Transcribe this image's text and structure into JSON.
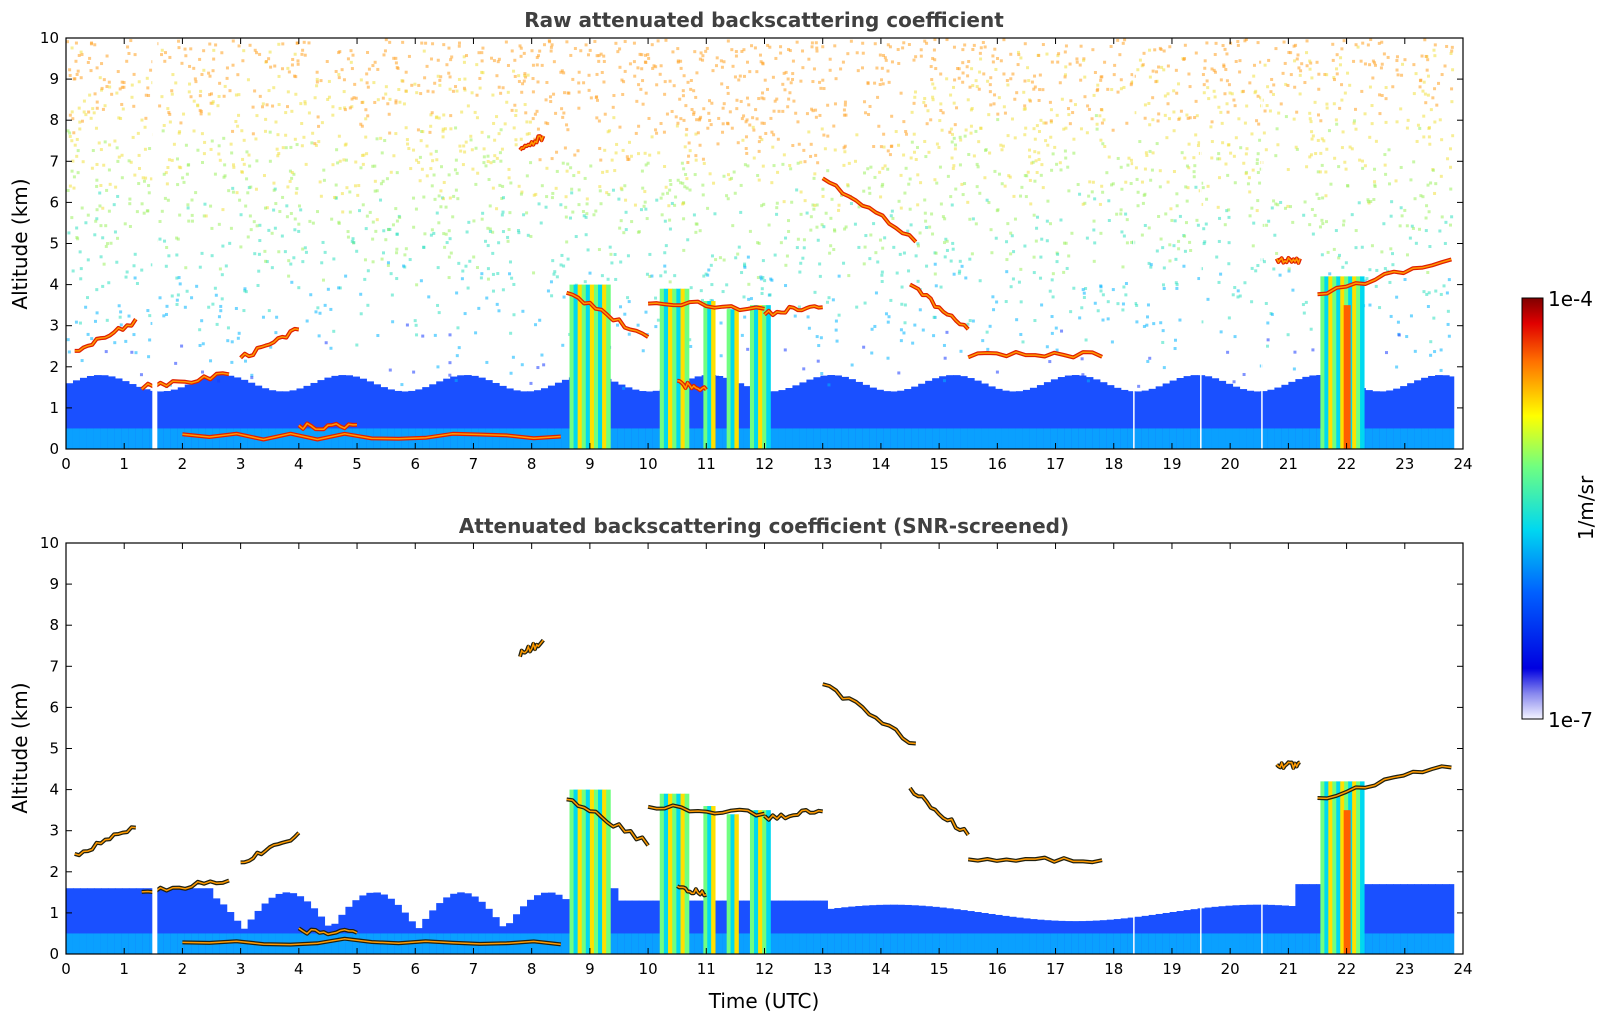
{
  "chart_data": [
    {
      "type": "heatmap",
      "title": "Raw attenuated backscattering coefficient",
      "xlabel": "",
      "ylabel": "Altitude (km)",
      "xlim": [
        0,
        24
      ],
      "ylim": [
        0,
        10
      ],
      "xticks": [
        "0",
        "1",
        "2",
        "3",
        "4",
        "5",
        "6",
        "7",
        "8",
        "9",
        "10",
        "11",
        "12",
        "13",
        "14",
        "15",
        "16",
        "17",
        "18",
        "19",
        "20",
        "21",
        "22",
        "23",
        "24"
      ],
      "yticks": [
        "0",
        "1",
        "2",
        "3",
        "4",
        "5",
        "6",
        "7",
        "8",
        "9",
        "10"
      ],
      "screened": false
    },
    {
      "type": "heatmap",
      "title": "Attenuated backscattering coefficient (SNR-screened)",
      "xlabel": "Time (UTC)",
      "ylabel": "Altitude (km)",
      "xlim": [
        0,
        24
      ],
      "ylim": [
        0,
        10
      ],
      "xticks": [
        "0",
        "1",
        "2",
        "3",
        "4",
        "5",
        "6",
        "7",
        "8",
        "9",
        "10",
        "11",
        "12",
        "13",
        "14",
        "15",
        "16",
        "17",
        "18",
        "19",
        "20",
        "21",
        "22",
        "23",
        "24"
      ],
      "yticks": [
        "0",
        "1",
        "2",
        "3",
        "4",
        "5",
        "6",
        "7",
        "8",
        "9",
        "10"
      ],
      "screened": true
    }
  ],
  "colorbar": {
    "label": "1/m/sr",
    "max_label": "1e-4",
    "min_label": "1e-7",
    "colormap": "jet",
    "scale": "log"
  },
  "layers": {
    "cloud_segments": [
      {
        "x0": 0.15,
        "x1": 1.2,
        "y0": 2.4,
        "y1": 3.1
      },
      {
        "x0": 1.3,
        "x1": 2.8,
        "y0": 1.5,
        "y1": 1.8
      },
      {
        "x0": 3.0,
        "x1": 4.0,
        "y0": 2.2,
        "y1": 2.9
      },
      {
        "x0": 4.0,
        "x1": 5.0,
        "y0": 0.55,
        "y1": 0.55
      },
      {
        "x0": 2.0,
        "x1": 8.5,
        "y0": 0.3,
        "y1": 0.3
      },
      {
        "x0": 7.8,
        "x1": 8.2,
        "y0": 7.3,
        "y1": 7.6
      },
      {
        "x0": 8.6,
        "x1": 10.0,
        "y0": 3.8,
        "y1": 2.7
      },
      {
        "x0": 10.0,
        "x1": 12.0,
        "y0": 3.6,
        "y1": 3.4
      },
      {
        "x0": 10.5,
        "x1": 11.0,
        "y0": 1.6,
        "y1": 1.45
      },
      {
        "x0": 12.0,
        "x1": 13.0,
        "y0": 3.3,
        "y1": 3.5
      },
      {
        "x0": 13.0,
        "x1": 14.6,
        "y0": 6.6,
        "y1": 5.1
      },
      {
        "x0": 14.5,
        "x1": 15.5,
        "y0": 4.0,
        "y1": 2.9
      },
      {
        "x0": 15.5,
        "x1": 17.8,
        "y0": 2.3,
        "y1": 2.3
      },
      {
        "x0": 20.8,
        "x1": 21.2,
        "y0": 4.6,
        "y1": 4.6
      },
      {
        "x0": 21.5,
        "x1": 23.8,
        "y0": 3.8,
        "y1": 4.6
      }
    ],
    "thick_columns": [
      {
        "x0": 8.65,
        "x1": 9.35,
        "top": 4.0
      },
      {
        "x0": 10.2,
        "x1": 10.7,
        "top": 3.9
      },
      {
        "x0": 10.95,
        "x1": 11.15,
        "top": 3.6
      },
      {
        "x0": 11.35,
        "x1": 11.55,
        "top": 3.4
      },
      {
        "x0": 11.75,
        "x1": 12.1,
        "top": 3.5
      },
      {
        "x0": 21.55,
        "x1": 22.3,
        "top": 4.2
      }
    ],
    "data_gaps": [
      1.5,
      18.35,
      19.5,
      20.55
    ]
  }
}
